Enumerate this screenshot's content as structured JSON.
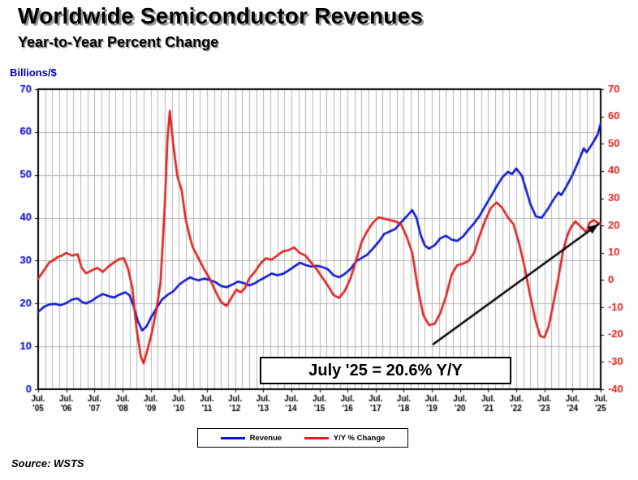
{
  "title": "Worldwide Semiconductor Revenues",
  "subtitle": "Year-to-Year Percent Change",
  "source": "Source: WSTS",
  "chart_data": {
    "type": "line",
    "title": "Worldwide Semiconductor Revenues",
    "subtitle": "Year-to-Year Percent Change",
    "x_range": [
      2005.5,
      2025.5
    ],
    "x_tick_month": "Jul.",
    "x_tick_years": [
      "'05",
      "'06",
      "'07",
      "'08",
      "'09",
      "'10",
      "'11",
      "'12",
      "'13",
      "'14",
      "'15",
      "'16",
      "'17",
      "'18",
      "'19",
      "'20",
      "'21",
      "'22",
      "'23",
      "'24",
      "'25"
    ],
    "left_axis": {
      "label": "Billions/$",
      "min": 0,
      "max": 70,
      "step": 10,
      "color": "#0000cc"
    },
    "right_axis": {
      "label": "Y/Y % Change",
      "min": -40,
      "max": 70,
      "step": 10,
      "color": "#e31e1e"
    },
    "grid": {
      "vertical_step_years": 0.25,
      "color": "#b3b3b3"
    },
    "legend_position": "bottom-center",
    "series": [
      {
        "name": "Revenue",
        "axis": "left",
        "color": "#0b16cf",
        "points": [
          [
            2005.5,
            18
          ],
          [
            2005.7,
            19.2
          ],
          [
            2005.9,
            19.8
          ],
          [
            2006.1,
            19.9
          ],
          [
            2006.3,
            19.6
          ],
          [
            2006.5,
            20.1
          ],
          [
            2006.7,
            20.9
          ],
          [
            2006.9,
            21.2
          ],
          [
            2007.05,
            20.4
          ],
          [
            2007.2,
            20
          ],
          [
            2007.4,
            20.6
          ],
          [
            2007.6,
            21.5
          ],
          [
            2007.8,
            22.2
          ],
          [
            2008,
            21.7
          ],
          [
            2008.2,
            21.4
          ],
          [
            2008.4,
            22.1
          ],
          [
            2008.6,
            22.6
          ],
          [
            2008.75,
            21.9
          ],
          [
            2008.9,
            19.3
          ],
          [
            2009.05,
            15.8
          ],
          [
            2009.2,
            13.7
          ],
          [
            2009.35,
            14.6
          ],
          [
            2009.5,
            16.6
          ],
          [
            2009.7,
            18.8
          ],
          [
            2009.9,
            20.9
          ],
          [
            2010.1,
            22
          ],
          [
            2010.3,
            22.8
          ],
          [
            2010.5,
            24.3
          ],
          [
            2010.7,
            25.3
          ],
          [
            2010.9,
            26.1
          ],
          [
            2011,
            25.8
          ],
          [
            2011.2,
            25.4
          ],
          [
            2011.4,
            25.8
          ],
          [
            2011.6,
            25.5
          ],
          [
            2011.8,
            25
          ],
          [
            2012,
            24.1
          ],
          [
            2012.2,
            23.8
          ],
          [
            2012.4,
            24.4
          ],
          [
            2012.6,
            25.1
          ],
          [
            2012.8,
            24.8
          ],
          [
            2013,
            24.2
          ],
          [
            2013.2,
            24.7
          ],
          [
            2013.4,
            25.5
          ],
          [
            2013.6,
            26.2
          ],
          [
            2013.8,
            27
          ],
          [
            2014,
            26.6
          ],
          [
            2014.2,
            26.9
          ],
          [
            2014.4,
            27.7
          ],
          [
            2014.6,
            28.6
          ],
          [
            2014.8,
            29.5
          ],
          [
            2015,
            29
          ],
          [
            2015.2,
            28.6
          ],
          [
            2015.4,
            28.8
          ],
          [
            2015.6,
            28.5
          ],
          [
            2015.8,
            28
          ],
          [
            2016,
            26.6
          ],
          [
            2016.2,
            26.1
          ],
          [
            2016.4,
            26.9
          ],
          [
            2016.6,
            28
          ],
          [
            2016.8,
            29.8
          ],
          [
            2017,
            30.6
          ],
          [
            2017.2,
            31.4
          ],
          [
            2017.4,
            32.8
          ],
          [
            2017.6,
            34.3
          ],
          [
            2017.8,
            36.2
          ],
          [
            2018,
            36.8
          ],
          [
            2018.2,
            37.4
          ],
          [
            2018.4,
            38.9
          ],
          [
            2018.6,
            40.3
          ],
          [
            2018.8,
            41.8
          ],
          [
            2018.95,
            40
          ],
          [
            2019.1,
            36
          ],
          [
            2019.25,
            33.5
          ],
          [
            2019.4,
            32.8
          ],
          [
            2019.6,
            33.6
          ],
          [
            2019.8,
            35.2
          ],
          [
            2020,
            35.8
          ],
          [
            2020.2,
            34.9
          ],
          [
            2020.4,
            34.6
          ],
          [
            2020.6,
            35.6
          ],
          [
            2020.8,
            37.2
          ],
          [
            2021,
            38.7
          ],
          [
            2021.2,
            40.5
          ],
          [
            2021.4,
            42.8
          ],
          [
            2021.6,
            45
          ],
          [
            2021.8,
            47.3
          ],
          [
            2022,
            49.4
          ],
          [
            2022.2,
            50.7
          ],
          [
            2022.35,
            50.2
          ],
          [
            2022.5,
            51.5
          ],
          [
            2022.7,
            49.8
          ],
          [
            2022.85,
            46.5
          ],
          [
            2023,
            43.2
          ],
          [
            2023.2,
            40.3
          ],
          [
            2023.4,
            40
          ],
          [
            2023.6,
            41.8
          ],
          [
            2023.8,
            44
          ],
          [
            2024,
            45.9
          ],
          [
            2024.1,
            45.3
          ],
          [
            2024.3,
            47.5
          ],
          [
            2024.5,
            50
          ],
          [
            2024.7,
            53
          ],
          [
            2024.9,
            56.2
          ],
          [
            2025,
            55.3
          ],
          [
            2025.1,
            56.2
          ],
          [
            2025.25,
            57.8
          ],
          [
            2025.4,
            59.5
          ],
          [
            2025.5,
            62
          ]
        ]
      },
      {
        "name": "Y/Y % Change",
        "axis": "right",
        "color": "#e31e1e",
        "points": [
          [
            2005.5,
            0.5
          ],
          [
            2005.7,
            3.5
          ],
          [
            2005.9,
            6.5
          ],
          [
            2006,
            7
          ],
          [
            2006.2,
            8.5
          ],
          [
            2006.35,
            9
          ],
          [
            2006.5,
            10
          ],
          [
            2006.7,
            9
          ],
          [
            2006.9,
            9.5
          ],
          [
            2007.05,
            4.5
          ],
          [
            2007.2,
            2.5
          ],
          [
            2007.4,
            3.5
          ],
          [
            2007.6,
            4.5
          ],
          [
            2007.8,
            3
          ],
          [
            2008,
            5
          ],
          [
            2008.2,
            6.5
          ],
          [
            2008.4,
            7.8
          ],
          [
            2008.55,
            8
          ],
          [
            2008.7,
            4
          ],
          [
            2008.85,
            -3
          ],
          [
            2009,
            -18
          ],
          [
            2009.15,
            -28
          ],
          [
            2009.25,
            -30.5
          ],
          [
            2009.4,
            -25
          ],
          [
            2009.55,
            -19
          ],
          [
            2009.7,
            -11
          ],
          [
            2009.85,
            -1
          ],
          [
            2010,
            27
          ],
          [
            2010.1,
            52
          ],
          [
            2010.18,
            62
          ],
          [
            2010.3,
            50
          ],
          [
            2010.45,
            38
          ],
          [
            2010.6,
            33
          ],
          [
            2010.75,
            22
          ],
          [
            2010.9,
            15.5
          ],
          [
            2011,
            12
          ],
          [
            2011.2,
            8
          ],
          [
            2011.4,
            4
          ],
          [
            2011.6,
            0.5
          ],
          [
            2011.8,
            -4
          ],
          [
            2012,
            -8
          ],
          [
            2012.2,
            -9.5
          ],
          [
            2012.4,
            -6
          ],
          [
            2012.55,
            -3.5
          ],
          [
            2012.7,
            -4.5
          ],
          [
            2012.85,
            -3
          ],
          [
            2013,
            0.5
          ],
          [
            2013.2,
            3
          ],
          [
            2013.4,
            6
          ],
          [
            2013.6,
            8
          ],
          [
            2013.8,
            7.5
          ],
          [
            2014,
            9
          ],
          [
            2014.2,
            10.5
          ],
          [
            2014.4,
            11
          ],
          [
            2014.6,
            12
          ],
          [
            2014.8,
            10
          ],
          [
            2015,
            9
          ],
          [
            2015.2,
            6.5
          ],
          [
            2015.4,
            4
          ],
          [
            2015.6,
            1
          ],
          [
            2015.8,
            -2
          ],
          [
            2016,
            -5.5
          ],
          [
            2016.2,
            -6.5
          ],
          [
            2016.4,
            -4
          ],
          [
            2016.6,
            0.5
          ],
          [
            2016.8,
            7
          ],
          [
            2017,
            14
          ],
          [
            2017.2,
            18
          ],
          [
            2017.4,
            21
          ],
          [
            2017.6,
            23
          ],
          [
            2017.8,
            22.5
          ],
          [
            2018,
            22
          ],
          [
            2018.2,
            21.5
          ],
          [
            2018.4,
            20.5
          ],
          [
            2018.6,
            16
          ],
          [
            2018.8,
            10
          ],
          [
            2019,
            -3
          ],
          [
            2019.2,
            -13
          ],
          [
            2019.4,
            -16.5
          ],
          [
            2019.6,
            -16
          ],
          [
            2019.8,
            -12
          ],
          [
            2020,
            -6
          ],
          [
            2020.2,
            2
          ],
          [
            2020.4,
            5.5
          ],
          [
            2020.6,
            6
          ],
          [
            2020.8,
            7
          ],
          [
            2021,
            10
          ],
          [
            2021.2,
            16.5
          ],
          [
            2021.4,
            22
          ],
          [
            2021.6,
            26.5
          ],
          [
            2021.8,
            28.5
          ],
          [
            2022,
            26.5
          ],
          [
            2022.2,
            23
          ],
          [
            2022.4,
            20.5
          ],
          [
            2022.6,
            13.5
          ],
          [
            2022.8,
            4.5
          ],
          [
            2023,
            -6
          ],
          [
            2023.2,
            -15.5
          ],
          [
            2023.35,
            -20.5
          ],
          [
            2023.5,
            -21
          ],
          [
            2023.65,
            -17
          ],
          [
            2023.8,
            -9.5
          ],
          [
            2024,
            1
          ],
          [
            2024.15,
            10
          ],
          [
            2024.3,
            16
          ],
          [
            2024.45,
            19.5
          ],
          [
            2024.6,
            21.5
          ],
          [
            2024.75,
            20
          ],
          [
            2024.9,
            18.5
          ],
          [
            2025,
            17.5
          ],
          [
            2025.1,
            21
          ],
          [
            2025.25,
            22
          ],
          [
            2025.4,
            21
          ],
          [
            2025.5,
            20.6
          ]
        ]
      }
    ],
    "annotations": {
      "label": "July '25 = 20.6% Y/Y",
      "arrow": {
        "axis": "left",
        "from": [
          2019.55,
          10.5
        ],
        "to": [
          2025.42,
          38.5
        ]
      }
    }
  }
}
